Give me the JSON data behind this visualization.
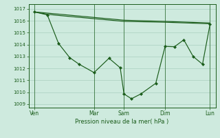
{
  "bg_color": "#ceeade",
  "grid_color": "#aacfbf",
  "line_color": "#1a5c1a",
  "ylabel_values": [
    1009,
    1010,
    1011,
    1012,
    1013,
    1014,
    1015,
    1016,
    1017
  ],
  "ylim": [
    1008.7,
    1017.4
  ],
  "xlim": [
    0,
    100
  ],
  "xtick_positions": [
    3,
    35,
    51,
    73,
    97
  ],
  "xtick_labels": [
    "Ven",
    "Mar",
    "Sam",
    "Dim",
    "Lun"
  ],
  "xlabel": "Pression niveau de la mer( hPa )",
  "line1_x": [
    3,
    51,
    73,
    97
  ],
  "line1_y": [
    1016.75,
    1016.05,
    1015.95,
    1015.82
  ],
  "line2_x": [
    3,
    10,
    16,
    51,
    73,
    97
  ],
  "line2_y": [
    1016.75,
    1016.55,
    1016.45,
    1015.95,
    1015.88,
    1015.75
  ],
  "line3_x": [
    3,
    10,
    16,
    22,
    27,
    35,
    43,
    49,
    51,
    55,
    60,
    68,
    73,
    78,
    83,
    88,
    93,
    97
  ],
  "line3_y": [
    1016.75,
    1016.5,
    1014.1,
    1012.9,
    1012.35,
    1011.65,
    1012.85,
    1012.05,
    1009.85,
    1009.45,
    1009.85,
    1010.75,
    1013.85,
    1013.82,
    1014.4,
    1013.0,
    1012.35,
    1015.7
  ]
}
